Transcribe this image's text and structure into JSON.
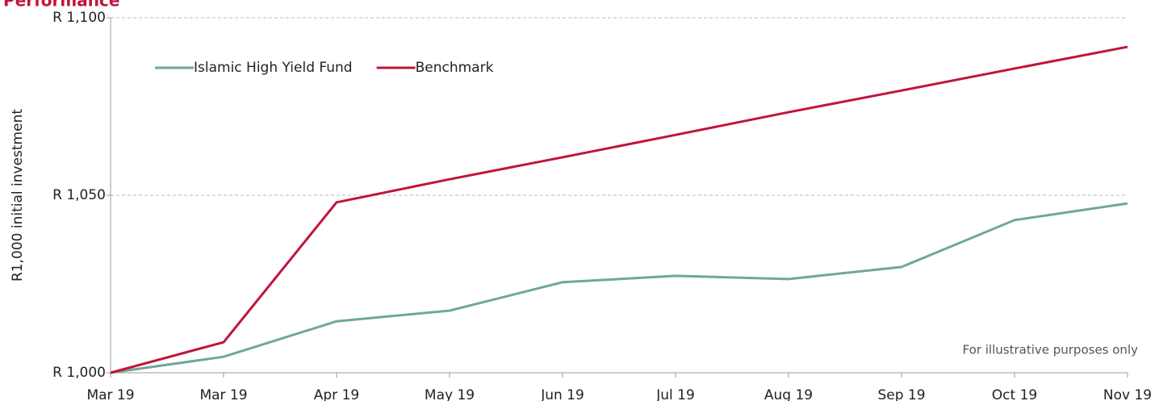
{
  "chart_data": {
    "type": "line",
    "title": "Performance",
    "ylabel": "R1,000 initial investment",
    "annotation": "For illustrative purposes only",
    "categories": [
      "Mar 19",
      "Mar 19",
      "Apr 19",
      "May 19",
      "Jun 19",
      "Jul 19",
      "Aug 19",
      "Sep 19",
      "Oct 19",
      "Nov 19"
    ],
    "series": [
      {
        "name": "Islamic High Yield Fund",
        "color": "#6fa898",
        "values": [
          1000,
          1004.5,
          1014.5,
          1017.5,
          1025.5,
          1027.3,
          1026.4,
          1029.8,
          1043,
          1047.7
        ]
      },
      {
        "name": "Benchmark",
        "color": "#c0143c",
        "values": [
          1000,
          1008.6,
          1048,
          1054.5,
          1060.7,
          1067,
          1073.4,
          1079.5,
          1085.7,
          1091.8
        ]
      }
    ],
    "ylim": [
      1000,
      1100
    ],
    "yticks": [
      {
        "value": 1000,
        "label": "R 1,000"
      },
      {
        "value": 1050,
        "label": "R 1,050"
      },
      {
        "value": 1100,
        "label": "R 1,100"
      }
    ],
    "grid": true
  }
}
